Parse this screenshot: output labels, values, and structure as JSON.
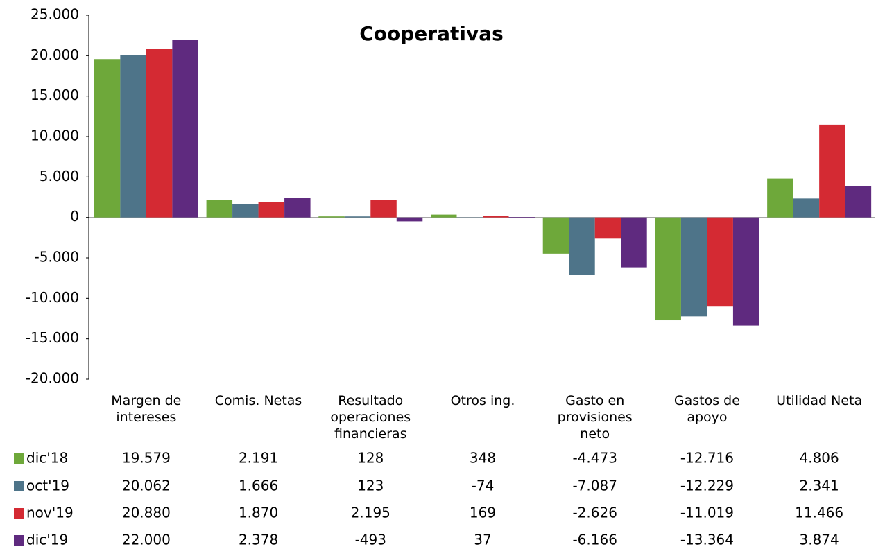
{
  "chart_data": {
    "type": "bar",
    "title": "Cooperativas",
    "categories": [
      "Margen de intereses",
      "Comis. Netas",
      "Resultado operaciones financieras",
      "Otros ing.",
      "Gasto en provisiones neto",
      "Gastos de apoyo",
      "Utilidad Neta"
    ],
    "series": [
      {
        "name": "dic'18",
        "color": "#6ea83a",
        "values": [
          19579,
          2191,
          128,
          348,
          -4473,
          -12716,
          4806
        ],
        "value_labels": [
          "19.579",
          "2.191",
          "128",
          "348",
          "-4.473",
          "-12.716",
          "4.806"
        ]
      },
      {
        "name": "oct'19",
        "color": "#4e7489",
        "values": [
          20062,
          1666,
          123,
          -74,
          -7087,
          -12229,
          2341
        ],
        "value_labels": [
          "20.062",
          "1.666",
          "123",
          "-74",
          "-7.087",
          "-12.229",
          "2.341"
        ]
      },
      {
        "name": "nov'19",
        "color": "#d42a33",
        "values": [
          20880,
          1870,
          2195,
          169,
          -2626,
          -11019,
          11466
        ],
        "value_labels": [
          "20.880",
          "1.870",
          "2.195",
          "169",
          "-2.626",
          "-11.019",
          "11.466"
        ]
      },
      {
        "name": "dic'19",
        "color": "#5f2a7f",
        "values": [
          22000,
          2378,
          -493,
          37,
          -6166,
          -13364,
          3874
        ],
        "value_labels": [
          "22.000",
          "2.378",
          "-493",
          "37",
          "-6.166",
          "-13.364",
          "3.874"
        ]
      }
    ],
    "ylim": [
      -20000,
      25000
    ],
    "yticks": [
      {
        "value": -20000,
        "label": "-20.000"
      },
      {
        "value": -15000,
        "label": "-15.000"
      },
      {
        "value": -10000,
        "label": "-10.000"
      },
      {
        "value": -5000,
        "label": "-5.000"
      },
      0,
      {
        "value": 5000,
        "label": "5.000"
      },
      {
        "value": 10000,
        "label": "10.000"
      },
      {
        "value": 15000,
        "label": "15.000"
      },
      {
        "value": 20000,
        "label": "20.000"
      },
      {
        "value": 25000,
        "label": "25.000"
      }
    ]
  }
}
